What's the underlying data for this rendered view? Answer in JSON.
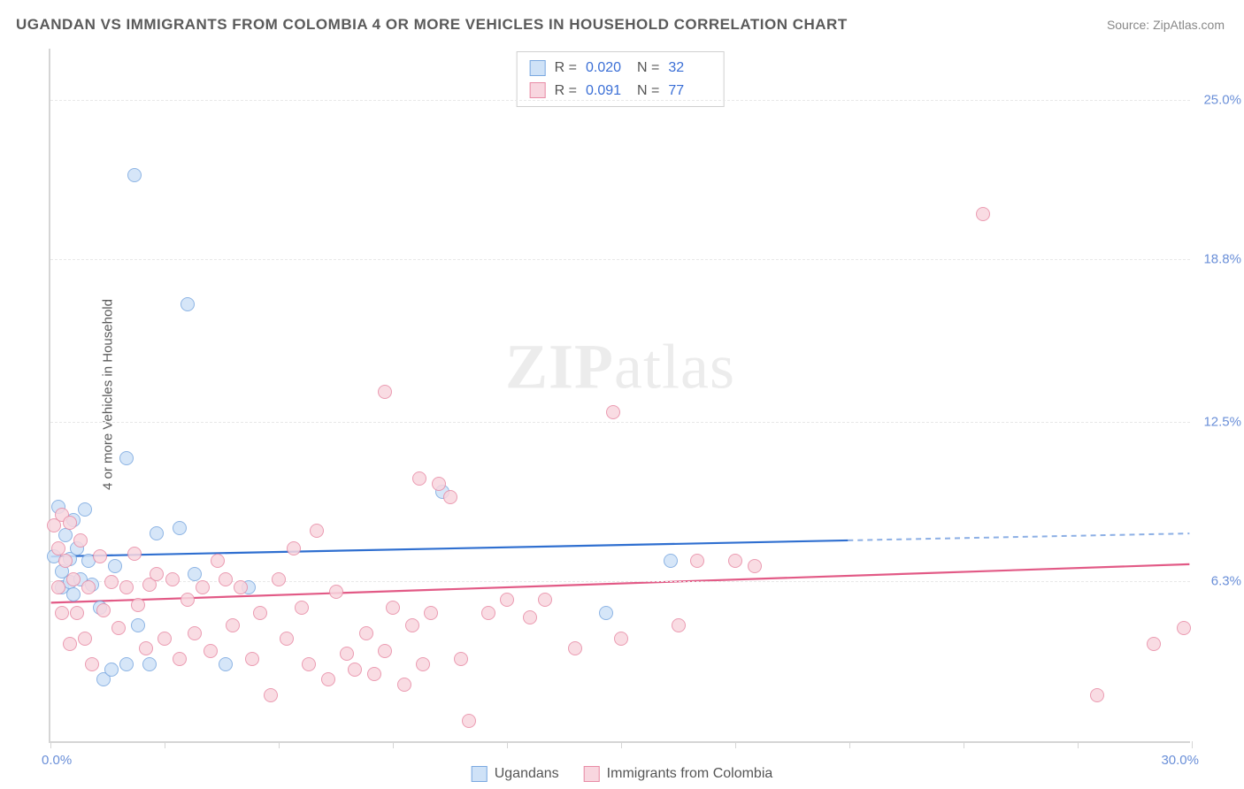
{
  "chart": {
    "type": "scatter",
    "title": "UGANDAN VS IMMIGRANTS FROM COLOMBIA 4 OR MORE VEHICLES IN HOUSEHOLD CORRELATION CHART",
    "source": "Source: ZipAtlas.com",
    "y_axis_label": "4 or more Vehicles in Household",
    "watermark_zip": "ZIP",
    "watermark_atlas": "atlas",
    "background_color": "#ffffff",
    "grid_color": "#e8e8e8",
    "axis_color": "#d5d5d5",
    "tick_label_color": "#6a8fd8",
    "title_color": "#5a5a5a",
    "title_fontsize": 17,
    "label_fontsize": 15,
    "xlim": [
      0.0,
      30.0
    ],
    "ylim": [
      0.0,
      27.0
    ],
    "x_tick_min_label": "0.0%",
    "x_tick_max_label": "30.0%",
    "x_tick_positions_pct": [
      0,
      10,
      20,
      30,
      40,
      50,
      60,
      70,
      80,
      90,
      100
    ],
    "y_gridlines": [
      {
        "value": 6.3,
        "label": "6.3%"
      },
      {
        "value": 12.5,
        "label": "12.5%"
      },
      {
        "value": 18.8,
        "label": "18.8%"
      },
      {
        "value": 25.0,
        "label": "25.0%"
      }
    ],
    "series": [
      {
        "name": "Ugandans",
        "fill": "#cfe2f7",
        "stroke": "#7aa8e0",
        "trend_color": "#2f6fd0",
        "r_label": "R =",
        "r_value": "0.020",
        "n_label": "N =",
        "n_value": "32",
        "marker_radius": 8,
        "trend": {
          "y_at_xmin": 7.2,
          "y_at_xmax": 8.1,
          "solid_until_x": 21.0
        },
        "points": [
          {
            "x": 0.1,
            "y": 7.2
          },
          {
            "x": 0.2,
            "y": 9.1
          },
          {
            "x": 0.3,
            "y": 6.0
          },
          {
            "x": 0.3,
            "y": 6.6
          },
          {
            "x": 0.4,
            "y": 8.0
          },
          {
            "x": 0.5,
            "y": 7.1
          },
          {
            "x": 0.5,
            "y": 6.2
          },
          {
            "x": 0.6,
            "y": 8.6
          },
          {
            "x": 0.6,
            "y": 5.7
          },
          {
            "x": 0.7,
            "y": 7.5
          },
          {
            "x": 0.8,
            "y": 6.3
          },
          {
            "x": 0.9,
            "y": 9.0
          },
          {
            "x": 1.0,
            "y": 7.0
          },
          {
            "x": 1.1,
            "y": 6.1
          },
          {
            "x": 1.3,
            "y": 5.2
          },
          {
            "x": 1.4,
            "y": 2.4
          },
          {
            "x": 1.6,
            "y": 2.8
          },
          {
            "x": 1.7,
            "y": 6.8
          },
          {
            "x": 2.0,
            "y": 11.0
          },
          {
            "x": 2.0,
            "y": 3.0
          },
          {
            "x": 2.2,
            "y": 22.0
          },
          {
            "x": 2.3,
            "y": 4.5
          },
          {
            "x": 2.6,
            "y": 3.0
          },
          {
            "x": 2.8,
            "y": 8.1
          },
          {
            "x": 3.4,
            "y": 8.3
          },
          {
            "x": 3.6,
            "y": 17.0
          },
          {
            "x": 3.8,
            "y": 6.5
          },
          {
            "x": 4.6,
            "y": 3.0
          },
          {
            "x": 5.2,
            "y": 6.0
          },
          {
            "x": 10.3,
            "y": 9.7
          },
          {
            "x": 14.6,
            "y": 5.0
          },
          {
            "x": 16.3,
            "y": 7.0
          }
        ]
      },
      {
        "name": "Immigrants from Colombia",
        "fill": "#f8d6df",
        "stroke": "#e88ba5",
        "trend_color": "#e25a86",
        "r_label": "R =",
        "r_value": "0.091",
        "n_label": "N =",
        "n_value": "77",
        "marker_radius": 8,
        "trend": {
          "y_at_xmin": 5.4,
          "y_at_xmax": 6.9,
          "solid_until_x": 30.0
        },
        "points": [
          {
            "x": 0.1,
            "y": 8.4
          },
          {
            "x": 0.2,
            "y": 7.5
          },
          {
            "x": 0.2,
            "y": 6.0
          },
          {
            "x": 0.3,
            "y": 8.8
          },
          {
            "x": 0.3,
            "y": 5.0
          },
          {
            "x": 0.4,
            "y": 7.0
          },
          {
            "x": 0.5,
            "y": 8.5
          },
          {
            "x": 0.5,
            "y": 3.8
          },
          {
            "x": 0.6,
            "y": 6.3
          },
          {
            "x": 0.7,
            "y": 5.0
          },
          {
            "x": 0.8,
            "y": 7.8
          },
          {
            "x": 0.9,
            "y": 4.0
          },
          {
            "x": 1.0,
            "y": 6.0
          },
          {
            "x": 1.1,
            "y": 3.0
          },
          {
            "x": 1.3,
            "y": 7.2
          },
          {
            "x": 1.4,
            "y": 5.1
          },
          {
            "x": 1.6,
            "y": 6.2
          },
          {
            "x": 1.8,
            "y": 4.4
          },
          {
            "x": 2.0,
            "y": 6.0
          },
          {
            "x": 2.2,
            "y": 7.3
          },
          {
            "x": 2.3,
            "y": 5.3
          },
          {
            "x": 2.5,
            "y": 3.6
          },
          {
            "x": 2.6,
            "y": 6.1
          },
          {
            "x": 2.8,
            "y": 6.5
          },
          {
            "x": 3.0,
            "y": 4.0
          },
          {
            "x": 3.2,
            "y": 6.3
          },
          {
            "x": 3.4,
            "y": 3.2
          },
          {
            "x": 3.6,
            "y": 5.5
          },
          {
            "x": 3.8,
            "y": 4.2
          },
          {
            "x": 4.0,
            "y": 6.0
          },
          {
            "x": 4.2,
            "y": 3.5
          },
          {
            "x": 4.4,
            "y": 7.0
          },
          {
            "x": 4.6,
            "y": 6.3
          },
          {
            "x": 4.8,
            "y": 4.5
          },
          {
            "x": 5.0,
            "y": 6.0
          },
          {
            "x": 5.3,
            "y": 3.2
          },
          {
            "x": 5.5,
            "y": 5.0
          },
          {
            "x": 5.8,
            "y": 1.8
          },
          {
            "x": 6.0,
            "y": 6.3
          },
          {
            "x": 6.2,
            "y": 4.0
          },
          {
            "x": 6.4,
            "y": 7.5
          },
          {
            "x": 6.6,
            "y": 5.2
          },
          {
            "x": 6.8,
            "y": 3.0
          },
          {
            "x": 7.0,
            "y": 8.2
          },
          {
            "x": 7.3,
            "y": 2.4
          },
          {
            "x": 7.5,
            "y": 5.8
          },
          {
            "x": 7.8,
            "y": 3.4
          },
          {
            "x": 8.0,
            "y": 2.8
          },
          {
            "x": 8.3,
            "y": 4.2
          },
          {
            "x": 8.5,
            "y": 2.6
          },
          {
            "x": 8.8,
            "y": 3.5
          },
          {
            "x": 8.8,
            "y": 13.6
          },
          {
            "x": 9.0,
            "y": 5.2
          },
          {
            "x": 9.3,
            "y": 2.2
          },
          {
            "x": 9.5,
            "y": 4.5
          },
          {
            "x": 9.7,
            "y": 10.2
          },
          {
            "x": 9.8,
            "y": 3.0
          },
          {
            "x": 10.0,
            "y": 5.0
          },
          {
            "x": 10.2,
            "y": 10.0
          },
          {
            "x": 10.5,
            "y": 9.5
          },
          {
            "x": 10.8,
            "y": 3.2
          },
          {
            "x": 11.0,
            "y": 0.8
          },
          {
            "x": 11.5,
            "y": 5.0
          },
          {
            "x": 12.0,
            "y": 5.5
          },
          {
            "x": 12.6,
            "y": 4.8
          },
          {
            "x": 13.0,
            "y": 5.5
          },
          {
            "x": 13.8,
            "y": 3.6
          },
          {
            "x": 14.8,
            "y": 12.8
          },
          {
            "x": 15.0,
            "y": 4.0
          },
          {
            "x": 16.5,
            "y": 4.5
          },
          {
            "x": 17.0,
            "y": 7.0
          },
          {
            "x": 18.0,
            "y": 7.0
          },
          {
            "x": 18.5,
            "y": 6.8
          },
          {
            "x": 24.5,
            "y": 20.5
          },
          {
            "x": 27.5,
            "y": 1.8
          },
          {
            "x": 29.0,
            "y": 3.8
          },
          {
            "x": 29.8,
            "y": 4.4
          }
        ]
      }
    ],
    "stats_legend_border": "#d0d0d0",
    "bottom_legend": [
      {
        "label": "Ugandans",
        "fill": "#cfe2f7",
        "stroke": "#7aa8e0"
      },
      {
        "label": "Immigrants from Colombia",
        "fill": "#f8d6df",
        "stroke": "#e88ba5"
      }
    ]
  }
}
